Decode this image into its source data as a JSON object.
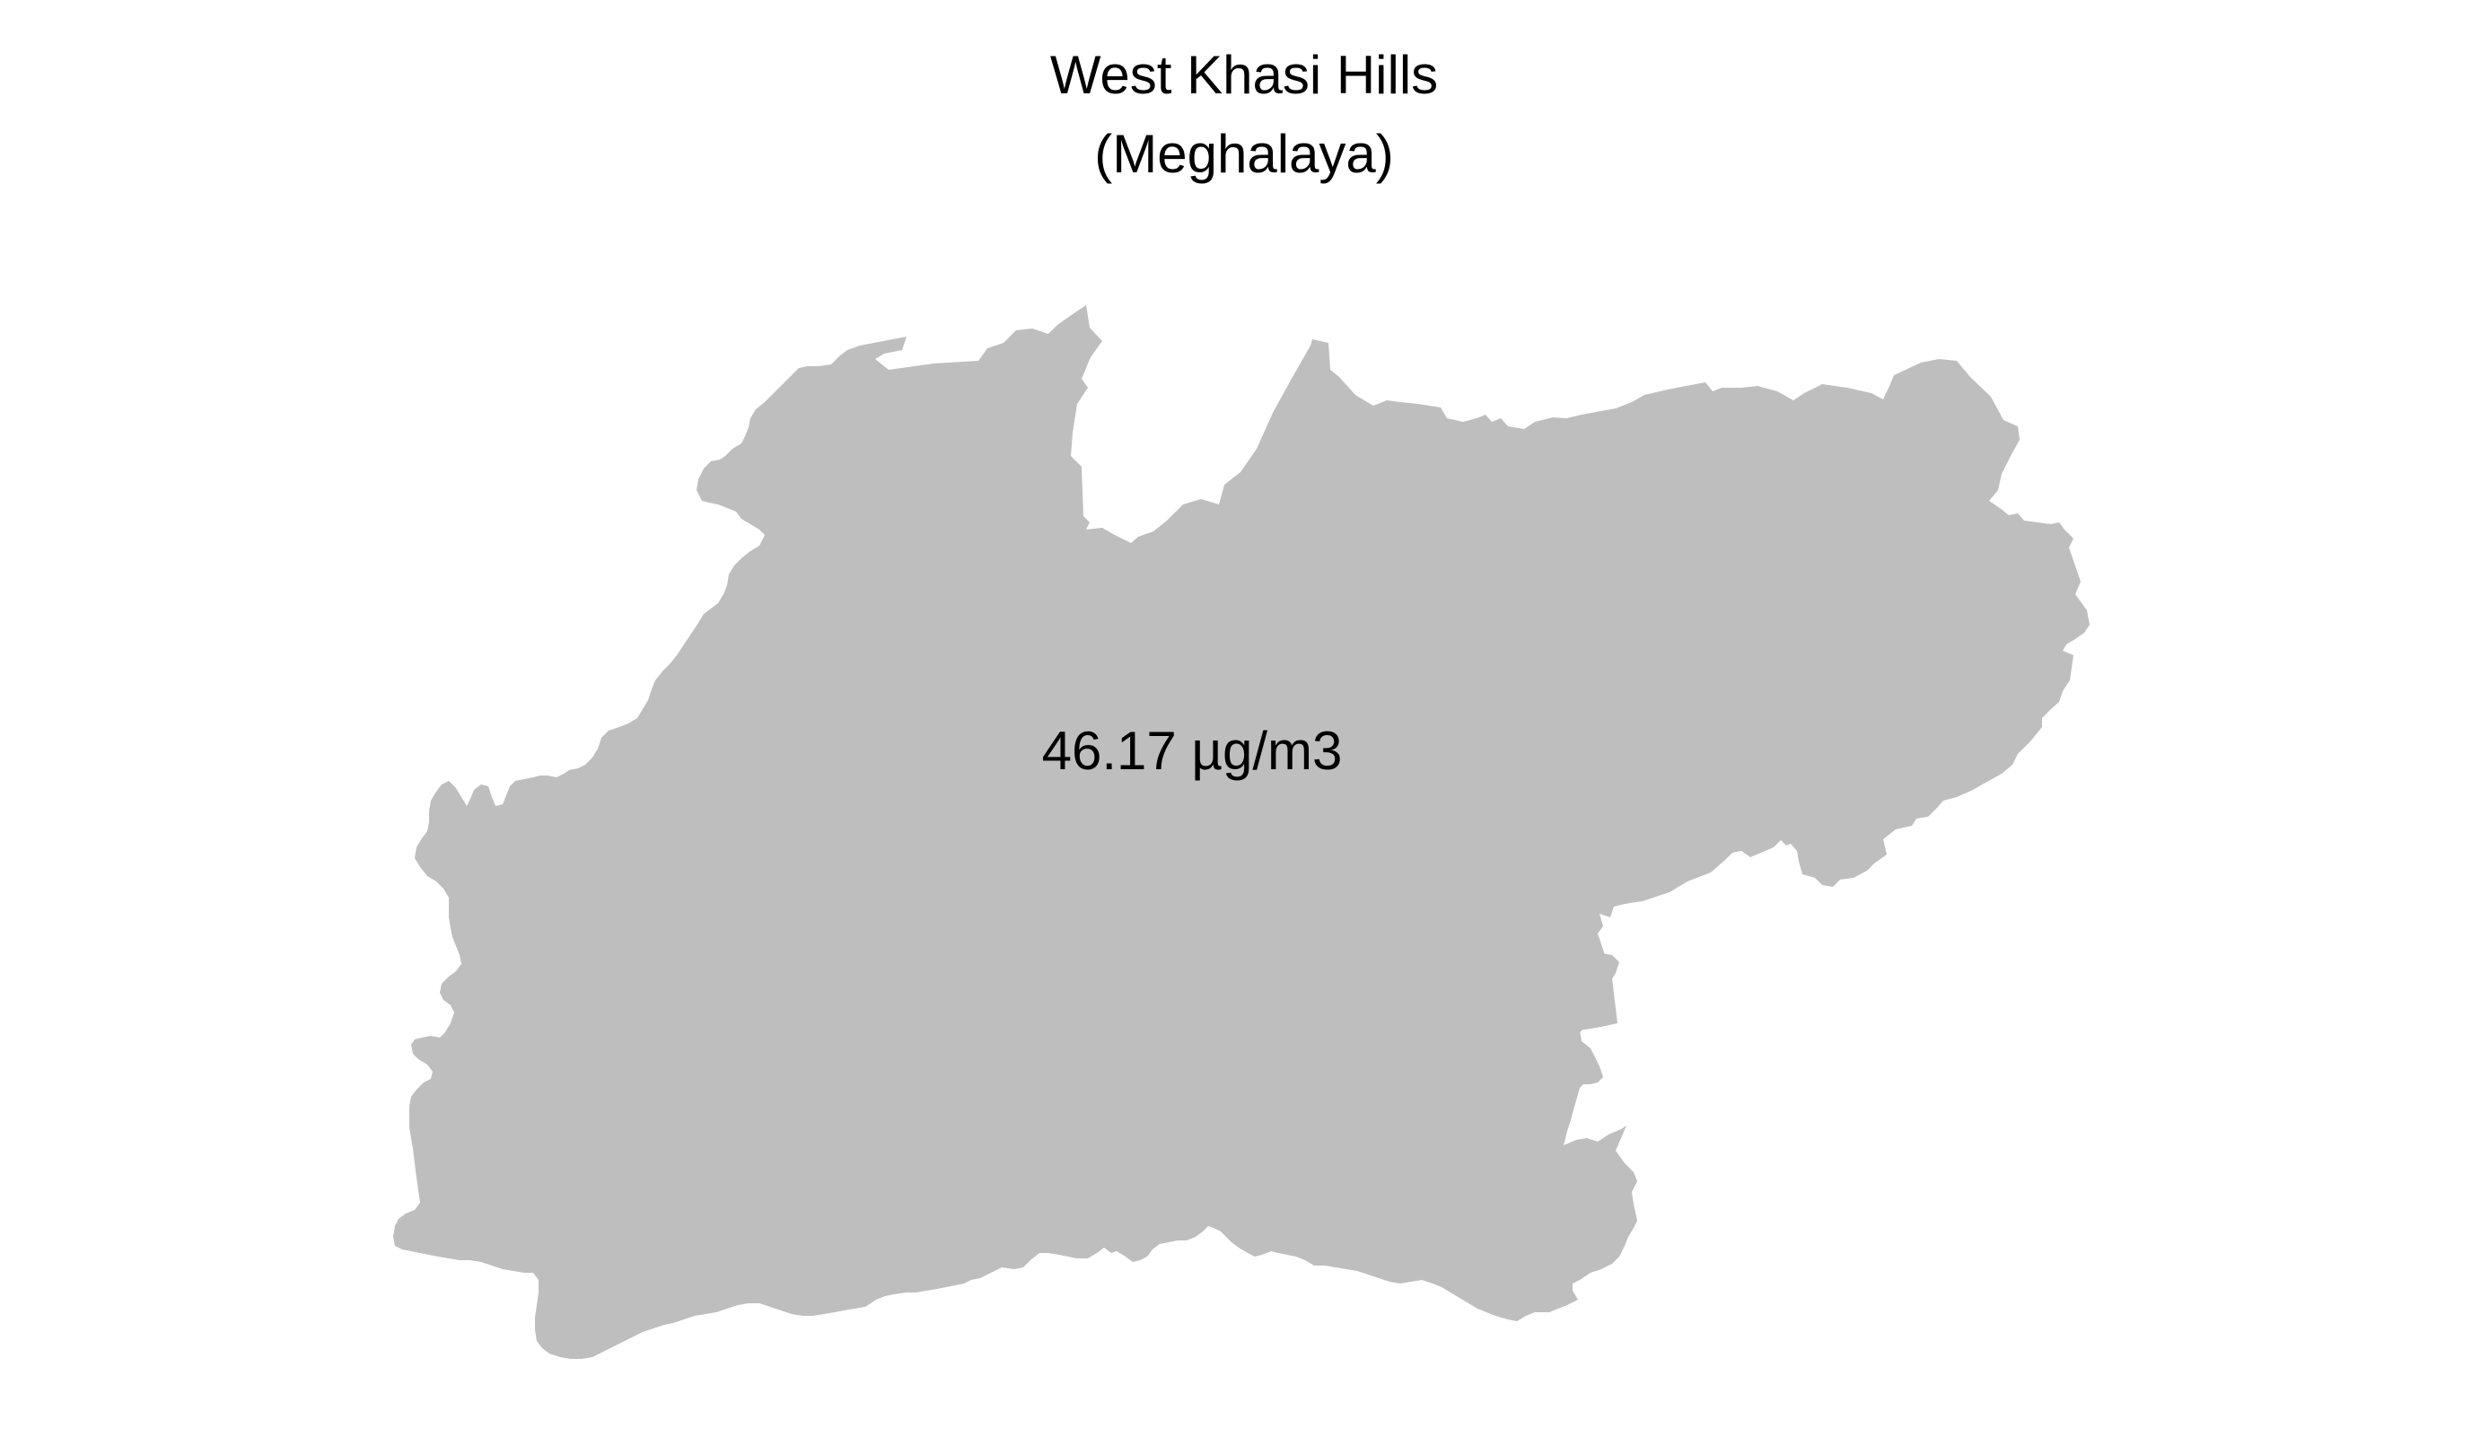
{
  "map": {
    "title": "West Khasi Hills",
    "subtitle": "(Meghalaya)",
    "region": {
      "name": "West Khasi Hills",
      "state": "Meghalaya",
      "fill_color": "#bebebe",
      "value": 46.17,
      "unit": "µg/m3",
      "label": "46.17 µg/m3"
    },
    "background_color": "#ffffff"
  }
}
